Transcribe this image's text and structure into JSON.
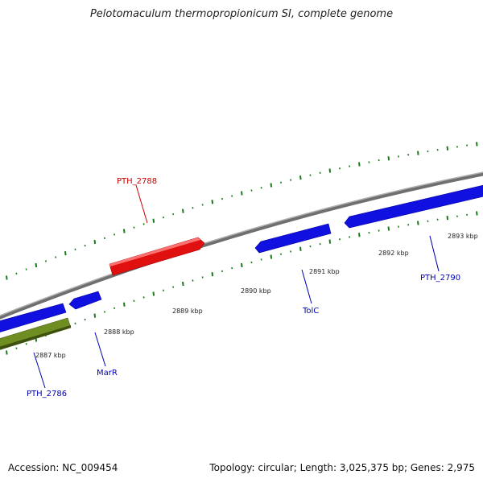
{
  "title": "Pelotomaculum thermopropionicum SI, complete genome",
  "footer": {
    "accession": "Accession: NC_009454",
    "summary": "Topology: circular; Length: 3,025,375 bp; Genes: 2,975"
  },
  "colors": {
    "backbone": "#8a8a8a",
    "ticks": "#1a7a1a",
    "forward_gene": "#e01010",
    "reverse_gene": "#1010e0",
    "rna_gene": "#6e8e22",
    "forward_label": "#cc0000",
    "reverse_label": "#0000b0"
  },
  "kbp_labels": [
    "2887 kbp",
    "2888 kbp",
    "2889 kbp",
    "2890 kbp",
    "2891 kbp",
    "2892 kbp",
    "2893 kbp"
  ],
  "gene_labels": {
    "pth2788": "PTH_2788",
    "pth2786": "PTH_2786",
    "marr": "MarR",
    "tolc": "TolC",
    "pth2790": "PTH_2790"
  }
}
